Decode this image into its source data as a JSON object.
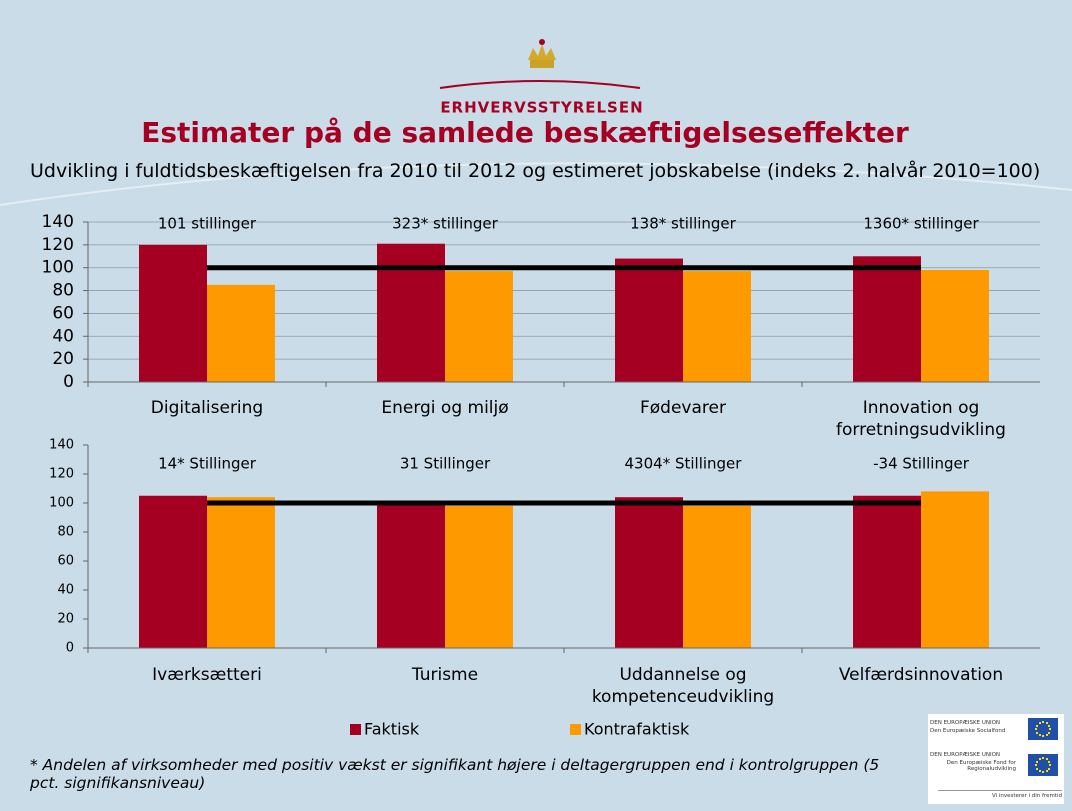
{
  "header": {
    "logo_text": "ERHVERVSSTYRELSEN",
    "title": "Estimater på de samlede beskæftigelseseffekter",
    "subtitle": "Udvikling i fuldtidsbeskæftigelsen fra 2010 til 2012 og estimeret jobskabelse (indeks 2. halvår 2010=100)"
  },
  "chart_data": [
    {
      "type": "bar",
      "categories": [
        "Digitalisering",
        "Energi og miljø",
        "Fødevarer",
        "Innovation og forretningsudvikling"
      ],
      "series": [
        {
          "color": "#a50021",
          "values": [
            120,
            121,
            108,
            110
          ]
        },
        {
          "color": "#ff9900",
          "values": [
            85,
            97,
            97,
            98
          ]
        }
      ],
      "annotations": [
        "101 stillinger",
        "323* stillinger",
        "138* stillinger",
        "1360* stillinger"
      ],
      "reference_line": 100,
      "ylim": [
        0,
        140
      ],
      "yticks": [
        0,
        20,
        40,
        60,
        80,
        100,
        120,
        140
      ],
      "grid": true
    },
    {
      "type": "bar",
      "categories": [
        "Iværksætteri",
        "Turisme",
        "Uddannelse og kompetenceudvikling",
        "Velfærdsinnovation"
      ],
      "series": [
        {
          "name": "Faktisk",
          "color": "#a50021",
          "values": [
            105,
            99,
            104,
            105
          ]
        },
        {
          "name": "Kontrafaktisk",
          "color": "#ff9900",
          "values": [
            104,
            98,
            98,
            108
          ]
        }
      ],
      "annotations": [
        "14* Stillinger",
        "31 Stillinger",
        "4304* Stillinger",
        "-34 Stillinger"
      ],
      "reference_line": 100,
      "ylim": [
        0,
        140
      ],
      "yticks": [
        0,
        20,
        40,
        60,
        80,
        100,
        120,
        140
      ],
      "grid": false
    }
  ],
  "footnote": "* Andelen af virksomheder med positiv vækst er signifikant højere i deltagergruppen end i kontrolgruppen (5 pct. signifikansniveau)",
  "eu_logo": {
    "line1": "DEN EUROPÆISKE UNION",
    "line2": "Den Europæiske Socialfond",
    "line3": "DEN EUROPÆISKE UNION",
    "line4": "Den Europæiske Fond for Regionaludvikling",
    "slogan": "Vi investerer i din fremtid"
  }
}
